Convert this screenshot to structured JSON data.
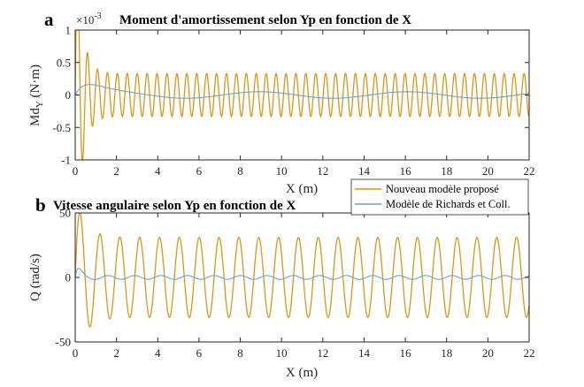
{
  "figure": {
    "legend": {
      "entries": [
        "Nouveau modèle proposé",
        "Modèle de Richards et Coll."
      ],
      "colors": [
        "#D9961A",
        "#6BA5C8"
      ]
    }
  },
  "chart_data": [
    {
      "panel_letter": "a",
      "type": "line",
      "title": "Moment d'amortissement selon Yp en fonction de X",
      "xlabel": "X (m)",
      "ylabel_main": "Md",
      "ylabel_sub": "Y",
      "ylabel_unit": " (N·m)",
      "exponent_base": "×10",
      "exponent_power": "-3",
      "xlim": [
        0,
        22
      ],
      "ylim": [
        -1,
        1
      ],
      "xticks": [
        "0",
        "2",
        "4",
        "6",
        "8",
        "10",
        "12",
        "14",
        "16",
        "18",
        "20",
        "22"
      ],
      "yticks": [
        "-1",
        "-0.5",
        "0",
        "0.5",
        "1"
      ],
      "grid": false,
      "series": [
        {
          "name": "Nouveau modèle proposé",
          "color": "#D9961A",
          "model": {
            "freq": 2.08,
            "amp_start": 2.5,
            "amp_end": 0.33,
            "decay": 3.2,
            "bias": 0.0
          }
        },
        {
          "name": "Modèle de Richards et Coll.",
          "color": "#6BA5C8",
          "model": {
            "freq": 0.14,
            "amp_start": 0.7,
            "amp_end": 0.05,
            "decay": 1.5,
            "bias": 0.0
          }
        }
      ]
    },
    {
      "panel_letter": "b",
      "type": "line",
      "title": "Vitesse angulaire selon Yp en fonction de X",
      "xlabel": "X (m)",
      "ylabel": "Q (rad/s)",
      "xlim": [
        0,
        22
      ],
      "ylim": [
        -50,
        50
      ],
      "xticks": [
        "0",
        "2",
        "4",
        "6",
        "8",
        "10",
        "12",
        "14",
        "16",
        "18",
        "20",
        "22"
      ],
      "yticks": [
        "-50",
        "0",
        "50"
      ],
      "grid": false,
      "series": [
        {
          "name": "Nouveau modèle proposé",
          "color": "#D9961A",
          "model": {
            "freq": 1.04,
            "amp_start": 62,
            "amp_end": 31,
            "decay": 2.0,
            "bias": 0.0
          }
        },
        {
          "name": "Modèle de Richards et Coll.",
          "color": "#6BA5C8",
          "model": {
            "freq": 0.78,
            "amp_start": 22,
            "amp_end": 1.5,
            "decay": 5.5,
            "bias": 0.0
          }
        }
      ]
    }
  ]
}
